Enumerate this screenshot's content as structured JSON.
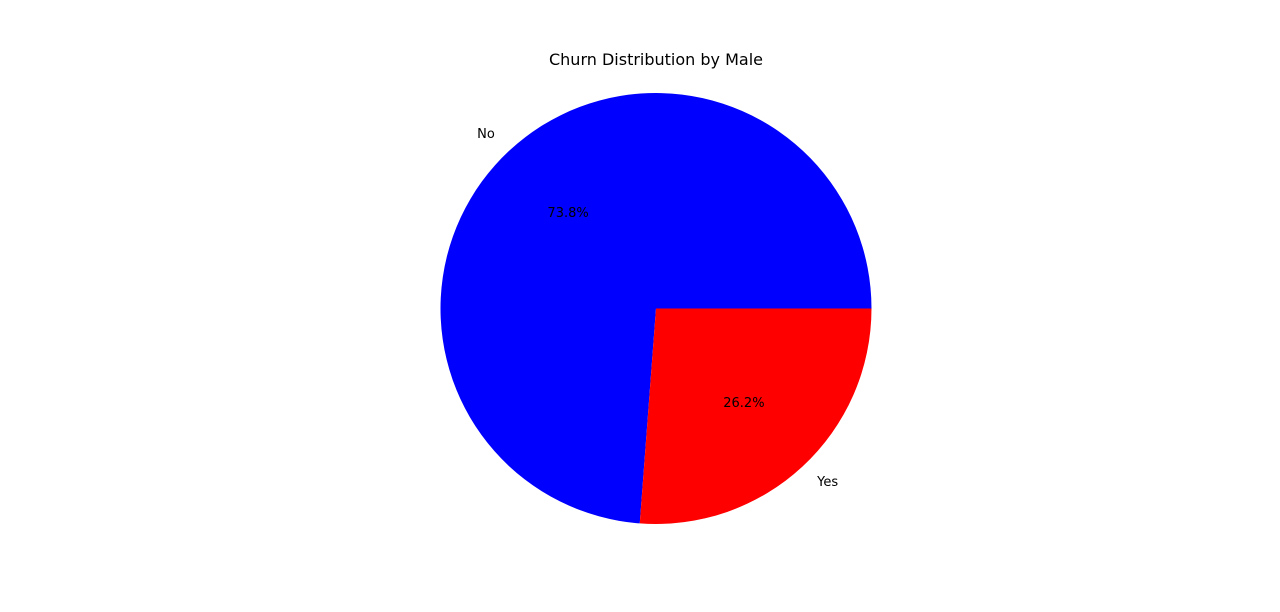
{
  "chart_data": {
    "type": "pie",
    "title": "Churn Distribution by Male",
    "slices": [
      {
        "label": "No",
        "value": 73.8,
        "pct_label": "73.8%",
        "color": "#0000ff"
      },
      {
        "label": "Yes",
        "value": 26.2,
        "pct_label": "26.2%",
        "color": "#ff0000"
      }
    ],
    "start_angle_deg": 0,
    "direction": "counterclockwise",
    "legend": "none"
  }
}
